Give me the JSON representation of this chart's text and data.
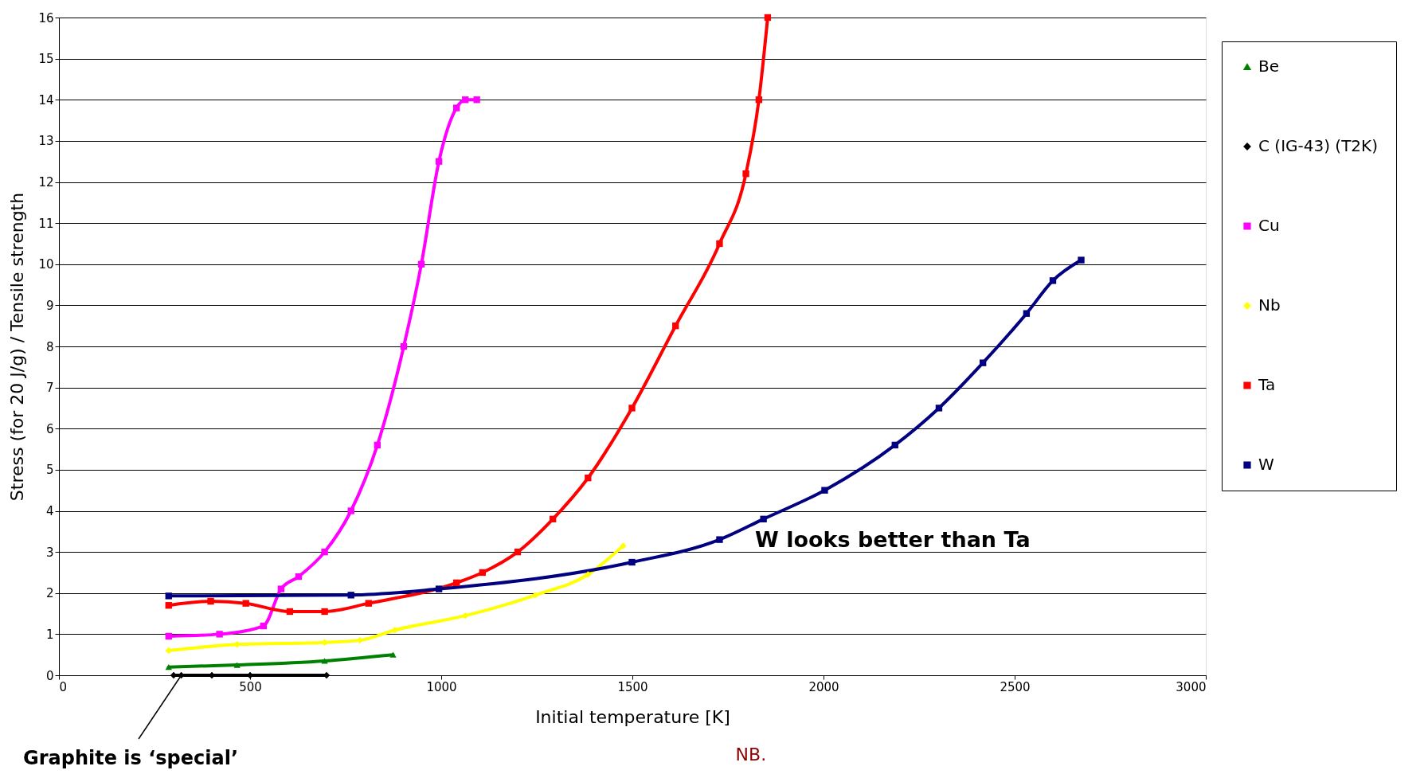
{
  "chart_data": {
    "type": "line",
    "xlabel": "Initial temperature [K]",
    "ylabel": "Stress (for 20 J/g) / Tensile strength",
    "xlim": [
      0,
      3000
    ],
    "xticks": [
      0,
      500,
      1000,
      1500,
      2000,
      2500,
      3000
    ],
    "ylim": [
      0,
      16
    ],
    "yticks": [
      0,
      1,
      2,
      3,
      4,
      5,
      6,
      7,
      8,
      9,
      10,
      11,
      12,
      13,
      14,
      15,
      16
    ],
    "grid": "y",
    "legend": "right",
    "line_style": "solid",
    "series": [
      {
        "name": "Be",
        "color": "#008000",
        "marker": "triangle",
        "x": [
          287,
          466,
          695,
          874
        ],
        "values": [
          0.2,
          0.25,
          0.35,
          0.5
        ]
      },
      {
        "name": "C (IG-43) (T2K)",
        "color": "#000000",
        "marker": "diamond",
        "x": [
          300,
          320,
          400,
          500,
          700
        ],
        "values": [
          0,
          0,
          0,
          0,
          0
        ]
      },
      {
        "name": "Cu",
        "color": "#ff00ff",
        "marker": "square",
        "x": [
          287,
          420,
          535,
          581,
          627,
          695,
          764,
          833,
          902,
          948,
          994,
          1040,
          1063,
          1093
        ],
        "values": [
          0.95,
          1.0,
          1.2,
          2.1,
          2.4,
          3.0,
          4.0,
          5.6,
          8.0,
          10.0,
          12.5,
          13.8,
          14.0,
          14.0
        ]
      },
      {
        "name": "Nb",
        "color": "#ffff00",
        "marker": "diamond",
        "x": [
          287,
          466,
          695,
          787,
          879,
          1063,
          1246,
          1384,
          1476
        ],
        "values": [
          0.6,
          0.75,
          0.8,
          0.85,
          1.1,
          1.45,
          1.95,
          2.45,
          3.15
        ]
      },
      {
        "name": "Ta",
        "color": "#ff0000",
        "marker": "square",
        "x": [
          287,
          397,
          489,
          604,
          695,
          810,
          1040,
          1108,
          1200,
          1292,
          1384,
          1499,
          1613,
          1728,
          1797,
          1831,
          1854
        ],
        "values": [
          1.7,
          1.8,
          1.75,
          1.55,
          1.55,
          1.75,
          2.25,
          2.5,
          3.0,
          3.8,
          4.8,
          6.5,
          8.5,
          10.5,
          12.2,
          14.0,
          16.0
        ]
      },
      {
        "name": "W",
        "color": "#000080",
        "marker": "square",
        "x": [
          287,
          764,
          994,
          1499,
          1728,
          1843,
          2003,
          2187,
          2302,
          2417,
          2531,
          2600,
          2674
        ],
        "values": [
          1.93,
          1.95,
          2.1,
          2.75,
          3.3,
          3.8,
          4.5,
          5.6,
          6.5,
          7.6,
          8.8,
          9.6,
          10.1
        ]
      }
    ],
    "annotations": [
      "W looks better than Ta",
      {
        "text": "Graphite is ‘special’",
        "x": 320,
        "y": 0
      },
      "NB."
    ]
  }
}
